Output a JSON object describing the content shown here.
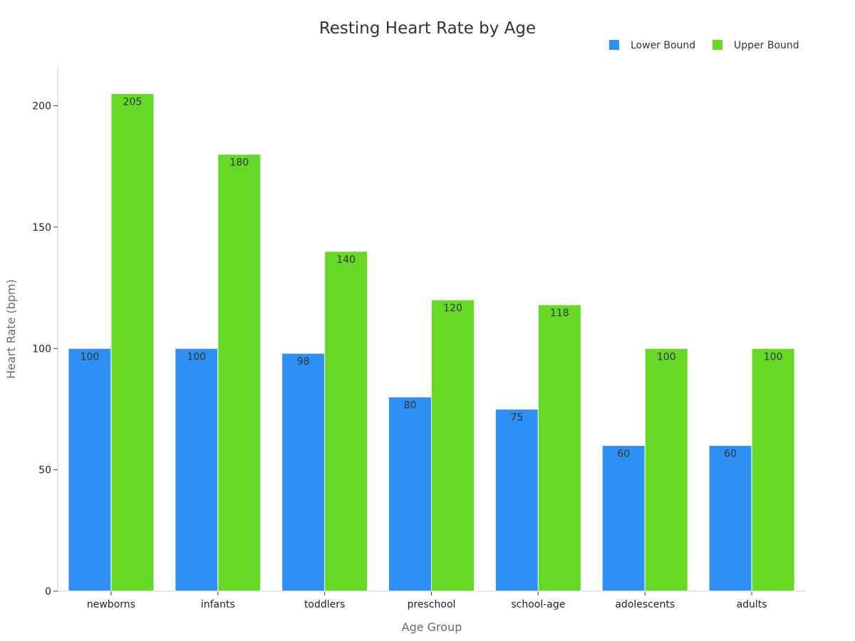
{
  "chart_data": {
    "type": "bar",
    "title": "Resting Heart Rate by Age",
    "xlabel": "Age Group",
    "ylabel": "Heart Rate (bpm)",
    "categories": [
      "newborns",
      "infants",
      "toddlers",
      "preschool",
      "school-age",
      "adolescents",
      "adults"
    ],
    "series": [
      {
        "name": "Lower Bound",
        "color": "#2e90f5",
        "values": [
          100,
          100,
          98,
          80,
          75,
          60,
          60
        ]
      },
      {
        "name": "Upper Bound",
        "color": "#66d926",
        "values": [
          205,
          180,
          140,
          120,
          118,
          100,
          100
        ]
      }
    ],
    "ylim": [
      0,
      216
    ],
    "yticks": [
      0,
      50,
      100,
      150,
      200
    ],
    "grid": false,
    "legend_position": "top-right"
  }
}
